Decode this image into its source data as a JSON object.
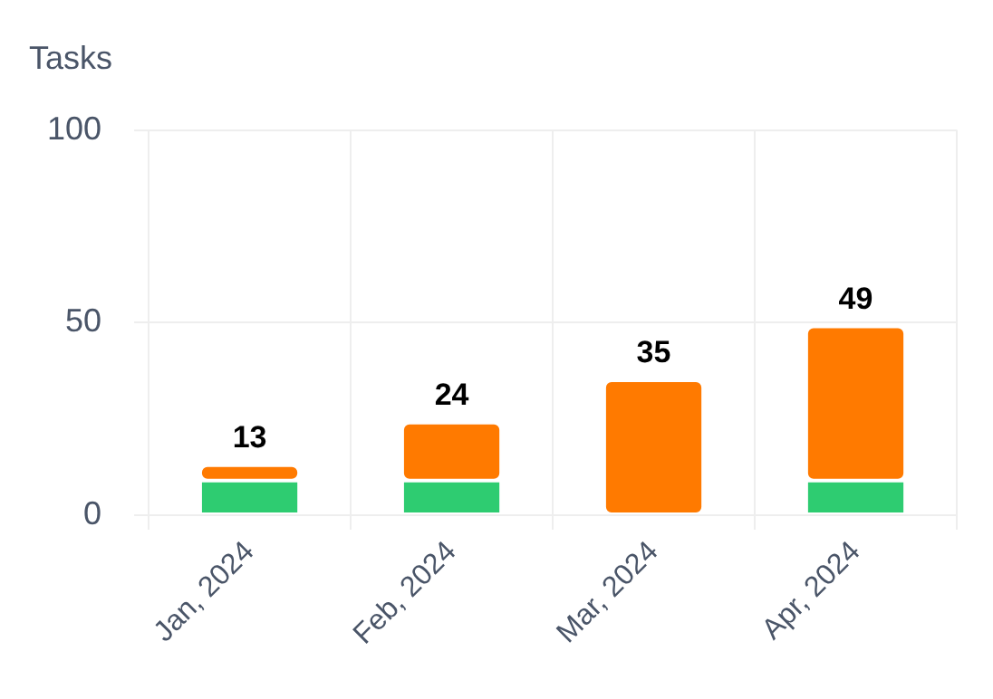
{
  "chart_data": {
    "type": "bar",
    "ylabel": "Tasks",
    "categories": [
      "Jan, 2024",
      "Feb, 2024",
      "Mar, 2024",
      "Apr, 2024"
    ],
    "stacked": true,
    "series": [
      {
        "color": "#2ecc71",
        "values": [
          9,
          9,
          0,
          9
        ]
      },
      {
        "color": "#ff7a00",
        "values": [
          4,
          15,
          35,
          40
        ]
      }
    ],
    "totals": [
      "13",
      "24",
      "35",
      "49"
    ],
    "ylim": [
      0,
      100
    ],
    "yticks": [
      0,
      50,
      100
    ],
    "grid": true,
    "legend": false
  }
}
